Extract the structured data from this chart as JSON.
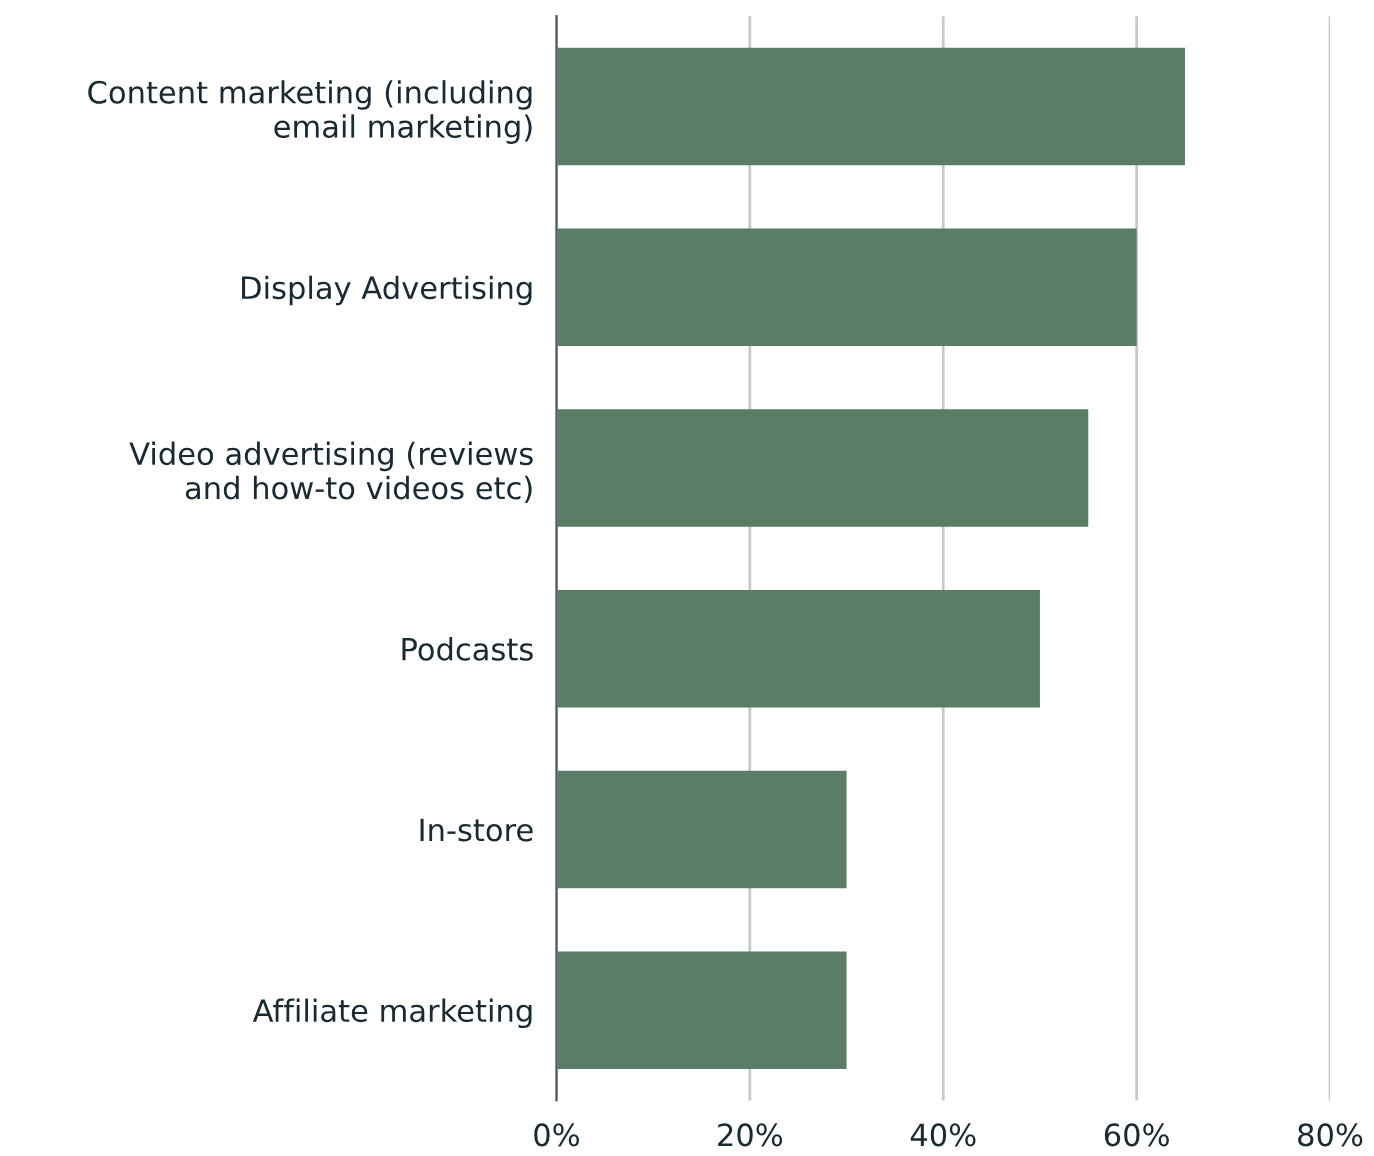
{
  "chart_data": {
    "type": "bar",
    "orientation": "horizontal",
    "categories": [
      "Content marketing (including\nemail marketing)",
      "Display Advertising",
      "Video advertising (reviews\nand how-to videos etc)",
      "Podcasts",
      "In-store",
      "Affiliate marketing"
    ],
    "values": [
      65,
      60,
      55,
      50,
      30,
      30
    ],
    "color": "#5a7d67",
    "xlim": [
      0,
      80
    ],
    "xticks": [
      {
        "value": 0,
        "label": "0%"
      },
      {
        "value": 20,
        "label": "20%"
      },
      {
        "value": 40,
        "label": "40%"
      },
      {
        "value": 60,
        "label": "60%"
      },
      {
        "value": 80,
        "label": "80%"
      }
    ],
    "grid": "x",
    "legend": false
  }
}
